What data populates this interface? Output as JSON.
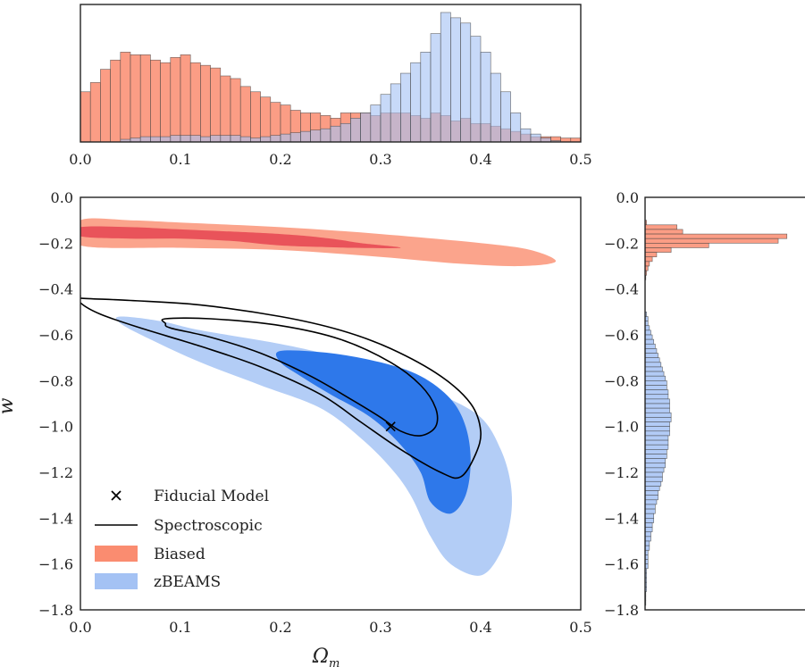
{
  "chart_data": [
    {
      "type": "bar",
      "panel": "top-marginal-histogram",
      "xlabel": "",
      "ylabel": "",
      "xlim": [
        0.0,
        0.5
      ],
      "xticks": [
        "0.0",
        "0.1",
        "0.2",
        "0.3",
        "0.4",
        "0.5"
      ],
      "bin_width": 0.01,
      "bin_start": 0.0,
      "series": [
        {
          "name": "Biased",
          "color": "#fa8c70",
          "values": [
            0.38,
            0.45,
            0.55,
            0.62,
            0.68,
            0.66,
            0.66,
            0.62,
            0.6,
            0.64,
            0.66,
            0.6,
            0.58,
            0.56,
            0.5,
            0.48,
            0.42,
            0.38,
            0.34,
            0.3,
            0.28,
            0.24,
            0.22,
            0.22,
            0.2,
            0.18,
            0.22,
            0.22,
            0.22,
            0.2,
            0.22,
            0.22,
            0.22,
            0.2,
            0.18,
            0.22,
            0.2,
            0.16,
            0.18,
            0.14,
            0.14,
            0.12,
            0.1,
            0.08,
            0.06,
            0.04,
            0.04,
            0.04,
            0.03,
            0.03
          ]
        },
        {
          "name": "zBEAMS",
          "color": "#a4c2f4",
          "values": [
            0.0,
            0.0,
            0.0,
            0.0,
            0.02,
            0.03,
            0.04,
            0.04,
            0.04,
            0.05,
            0.05,
            0.05,
            0.04,
            0.05,
            0.05,
            0.05,
            0.04,
            0.03,
            0.04,
            0.05,
            0.06,
            0.07,
            0.08,
            0.09,
            0.1,
            0.12,
            0.14,
            0.18,
            0.22,
            0.28,
            0.36,
            0.44,
            0.52,
            0.6,
            0.68,
            0.82,
            0.98,
            0.94,
            0.9,
            0.8,
            0.68,
            0.52,
            0.38,
            0.22,
            0.1,
            0.06,
            0.03,
            0.01,
            0.0,
            0.0
          ]
        }
      ]
    },
    {
      "type": "contour",
      "panel": "main-joint-posterior",
      "xlabel": "Ωm",
      "ylabel": "w",
      "xlim": [
        0.0,
        0.5
      ],
      "ylim": [
        -1.8,
        0.0
      ],
      "xticks": [
        "0.0",
        "0.1",
        "0.2",
        "0.3",
        "0.4",
        "0.5"
      ],
      "yticks": [
        "0.0",
        "−0.2",
        "−0.4",
        "−0.6",
        "−0.8",
        "−1.0",
        "−1.2",
        "−1.4",
        "−1.6",
        "−1.8"
      ],
      "fiducial": {
        "x": 0.31,
        "y": -1.0
      },
      "contours": [
        {
          "series": "Biased",
          "level": "95%",
          "color": "#fba48c",
          "points": [
            [
              0.0,
              -0.1
            ],
            [
              0.05,
              -0.1
            ],
            [
              0.1,
              -0.11
            ],
            [
              0.2,
              -0.13
            ],
            [
              0.3,
              -0.16
            ],
            [
              0.4,
              -0.2
            ],
            [
              0.45,
              -0.23
            ],
            [
              0.475,
              -0.28
            ],
            [
              0.44,
              -0.3
            ],
            [
              0.38,
              -0.29
            ],
            [
              0.3,
              -0.26
            ],
            [
              0.2,
              -0.23
            ],
            [
              0.1,
              -0.22
            ],
            [
              0.0,
              -0.21
            ]
          ]
        },
        {
          "series": "Biased",
          "level": "68%",
          "color": "#e9535a",
          "points": [
            [
              0.0,
              -0.13
            ],
            [
              0.05,
              -0.13
            ],
            [
              0.1,
              -0.14
            ],
            [
              0.2,
              -0.16
            ],
            [
              0.25,
              -0.18
            ],
            [
              0.28,
              -0.2
            ],
            [
              0.32,
              -0.22
            ],
            [
              0.27,
              -0.22
            ],
            [
              0.2,
              -0.21
            ],
            [
              0.15,
              -0.19
            ],
            [
              0.1,
              -0.18
            ],
            [
              0.05,
              -0.18
            ],
            [
              0.0,
              -0.17
            ]
          ]
        },
        {
          "series": "zBEAMS",
          "level": "95%",
          "color": "#b3cdf6",
          "points": [
            [
              0.04,
              -0.52
            ],
            [
              0.08,
              -0.54
            ],
            [
              0.12,
              -0.58
            ],
            [
              0.2,
              -0.64
            ],
            [
              0.26,
              -0.7
            ],
            [
              0.32,
              -0.78
            ],
            [
              0.36,
              -0.86
            ],
            [
              0.4,
              -0.96
            ],
            [
              0.42,
              -1.1
            ],
            [
              0.43,
              -1.25
            ],
            [
              0.43,
              -1.4
            ],
            [
              0.42,
              -1.55
            ],
            [
              0.4,
              -1.65
            ],
            [
              0.37,
              -1.6
            ],
            [
              0.35,
              -1.48
            ],
            [
              0.33,
              -1.3
            ],
            [
              0.31,
              -1.18
            ],
            [
              0.28,
              -1.05
            ],
            [
              0.24,
              -0.92
            ],
            [
              0.18,
              -0.82
            ],
            [
              0.12,
              -0.72
            ],
            [
              0.07,
              -0.62
            ],
            [
              0.04,
              -0.55
            ]
          ]
        },
        {
          "series": "zBEAMS",
          "level": "68%",
          "color": "#2e78ea",
          "points": [
            [
              0.2,
              -0.67
            ],
            [
              0.25,
              -0.68
            ],
            [
              0.3,
              -0.72
            ],
            [
              0.34,
              -0.78
            ],
            [
              0.37,
              -0.88
            ],
            [
              0.385,
              -1.0
            ],
            [
              0.39,
              -1.15
            ],
            [
              0.385,
              -1.3
            ],
            [
              0.37,
              -1.38
            ],
            [
              0.35,
              -1.33
            ],
            [
              0.34,
              -1.2
            ],
            [
              0.32,
              -1.08
            ],
            [
              0.29,
              -0.96
            ],
            [
              0.25,
              -0.86
            ],
            [
              0.22,
              -0.78
            ],
            [
              0.2,
              -0.72
            ]
          ]
        },
        {
          "series": "Spectroscopic",
          "level": "95%",
          "color": "#000000",
          "closed": false,
          "points": [
            [
              0.0,
              -0.43
            ],
            [
              0.0,
              -0.44
            ],
            [
              0.05,
              -0.45
            ],
            [
              0.12,
              -0.47
            ],
            [
              0.2,
              -0.52
            ],
            [
              0.26,
              -0.58
            ],
            [
              0.31,
              -0.66
            ],
            [
              0.36,
              -0.78
            ],
            [
              0.39,
              -0.9
            ],
            [
              0.4,
              -1.02
            ],
            [
              0.395,
              -1.12
            ],
            [
              0.38,
              -1.22
            ],
            [
              0.36,
              -1.2
            ],
            [
              0.32,
              -1.1
            ],
            [
              0.28,
              -0.98
            ],
            [
              0.24,
              -0.86
            ],
            [
              0.18,
              -0.74
            ],
            [
              0.12,
              -0.65
            ],
            [
              0.06,
              -0.57
            ],
            [
              0.02,
              -0.51
            ],
            [
              0.0,
              -0.46
            ]
          ]
        },
        {
          "series": "Spectroscopic",
          "level": "68%",
          "color": "#000000",
          "closed": false,
          "points": [
            [
              0.085,
              -0.53
            ],
            [
              0.13,
              -0.53
            ],
            [
              0.2,
              -0.56
            ],
            [
              0.26,
              -0.62
            ],
            [
              0.31,
              -0.72
            ],
            [
              0.34,
              -0.82
            ],
            [
              0.355,
              -0.92
            ],
            [
              0.355,
              -1.0
            ],
            [
              0.34,
              -1.04
            ],
            [
              0.32,
              -1.02
            ],
            [
              0.3,
              -0.96
            ],
            [
              0.27,
              -0.88
            ],
            [
              0.23,
              -0.78
            ],
            [
              0.18,
              -0.68
            ],
            [
              0.13,
              -0.61
            ],
            [
              0.09,
              -0.57
            ],
            [
              0.085,
              -0.55
            ]
          ]
        }
      ]
    },
    {
      "type": "bar",
      "panel": "right-marginal-histogram",
      "orientation": "horizontal",
      "xlabel": "",
      "ylabel": "",
      "ylim": [
        -1.8,
        0.0
      ],
      "yticks": [
        "0.0",
        "−0.2",
        "−0.4",
        "−0.6",
        "−0.8",
        "−1.0",
        "−1.2",
        "−1.4",
        "−1.6",
        "−1.8"
      ],
      "bin_width": 0.02,
      "series": [
        {
          "name": "Biased",
          "color": "#fa8c70",
          "bins_start": [
            -0.1,
            -0.12,
            -0.14,
            -0.16,
            -0.18,
            -0.2,
            -0.22,
            -0.24,
            -0.26,
            -0.28,
            -0.3,
            -0.32,
            -0.34
          ],
          "values": [
            0.01,
            0.22,
            0.26,
            0.98,
            0.92,
            0.44,
            0.18,
            0.08,
            0.05,
            0.03,
            0.02,
            0.01,
            0.005
          ]
        },
        {
          "name": "zBEAMS",
          "color": "#a4c2f4",
          "bins_start": [
            -0.5,
            -0.52,
            -0.54,
            -0.56,
            -0.58,
            -0.6,
            -0.62,
            -0.64,
            -0.66,
            -0.68,
            -0.7,
            -0.72,
            -0.74,
            -0.76,
            -0.78,
            -0.8,
            -0.82,
            -0.84,
            -0.86,
            -0.88,
            -0.9,
            -0.92,
            -0.94,
            -0.96,
            -0.98,
            -1.0,
            -1.02,
            -1.04,
            -1.06,
            -1.08,
            -1.1,
            -1.12,
            -1.14,
            -1.16,
            -1.18,
            -1.2,
            -1.22,
            -1.24,
            -1.26,
            -1.28,
            -1.3,
            -1.32,
            -1.34,
            -1.36,
            -1.38,
            -1.4,
            -1.42,
            -1.44,
            -1.46,
            -1.48,
            -1.5,
            -1.52,
            -1.54,
            -1.56,
            -1.58,
            -1.6,
            -1.62,
            -1.64,
            -1.66,
            -1.68,
            -1.7,
            -1.72,
            -1.74,
            -1.76
          ],
          "values": [
            0.01,
            0.02,
            0.02,
            0.03,
            0.04,
            0.05,
            0.06,
            0.07,
            0.08,
            0.09,
            0.1,
            0.11,
            0.12,
            0.13,
            0.14,
            0.15,
            0.15,
            0.16,
            0.16,
            0.17,
            0.17,
            0.17,
            0.18,
            0.18,
            0.17,
            0.17,
            0.17,
            0.16,
            0.16,
            0.16,
            0.15,
            0.15,
            0.14,
            0.14,
            0.13,
            0.12,
            0.12,
            0.11,
            0.1,
            0.09,
            0.09,
            0.08,
            0.07,
            0.07,
            0.06,
            0.06,
            0.05,
            0.05,
            0.04,
            0.04,
            0.03,
            0.03,
            0.02,
            0.02,
            0.02,
            0.02,
            0.01,
            0.01,
            0.01,
            0.01,
            0.01,
            0.005,
            0.005,
            0.005
          ]
        }
      ]
    }
  ],
  "legend": {
    "placement": "lower-left",
    "entries": [
      {
        "label": "Fiducial Model",
        "marker": "x"
      },
      {
        "label": "Spectroscopic",
        "marker": "line"
      },
      {
        "label": "Biased",
        "marker": "patch",
        "color": "#fa8c70"
      },
      {
        "label": "zBEAMS",
        "marker": "patch",
        "color": "#a4c2f4"
      }
    ]
  }
}
